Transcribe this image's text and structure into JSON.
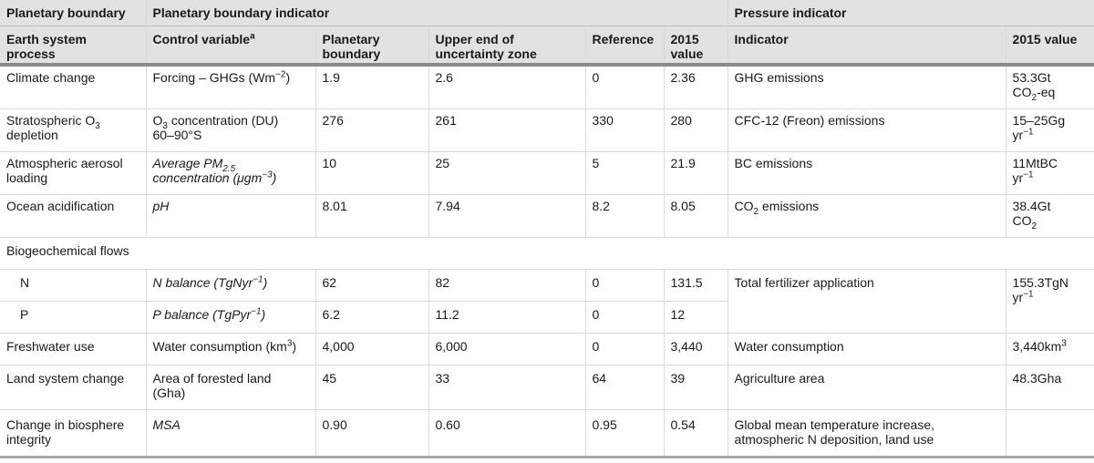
{
  "headers": {
    "group_pb": "Planetary boundary",
    "group_pbi": "Planetary boundary indicator",
    "group_pi": "Pressure indicator",
    "col_process": "Earth system process",
    "col_control_prefix": "Control variable",
    "col_control_sup": "a",
    "col_boundary": "Planetary boundary",
    "col_upper": "Upper end of uncertainty zone",
    "col_reference": "Reference",
    "col_2015a": "2015 value",
    "col_indicator": "Indicator",
    "col_2015b": "2015 value"
  },
  "rows": {
    "climate": {
      "process": "Climate change",
      "cv_a": "Forcing – GHGs (Wm",
      "cv_sup": "−2",
      "cv_b": ")",
      "boundary": "1.9",
      "upper": "2.6",
      "reference": "0",
      "value2015": "2.36",
      "indicator": "GHG emissions",
      "pvalue_a": "53.3Gt",
      "pvalue_b": "CO",
      "pvalue_sub": "2",
      "pvalue_c": "-eq"
    },
    "ozone": {
      "process_a": "Stratospheric O",
      "process_sub": "3",
      "process_b": "depletion",
      "cv_a": "O",
      "cv_sub": "3",
      "cv_b": " concentration (DU)",
      "cv_c": "60–90°S",
      "boundary": "276",
      "upper": "261",
      "reference": "330",
      "value2015": "280",
      "indicator": "CFC-12 (Freon) emissions",
      "pvalue_a": "15–25Gg",
      "pvalue_b": "yr",
      "pvalue_sup": "−1"
    },
    "aerosol": {
      "process_a": "Atmospheric aerosol",
      "process_b": "loading",
      "cv_a": "Average PM",
      "cv_sub": "2.5",
      "cv_b": "concentration (μgm",
      "cv_sup": "−3",
      "cv_c": ")",
      "boundary": "10",
      "upper": "25",
      "reference": "5",
      "value2015": "21.9",
      "indicator": "BC emissions",
      "pvalue_a": "11MtBC",
      "pvalue_b": "yr",
      "pvalue_sup": "−1"
    },
    "ocean": {
      "process": "Ocean acidification",
      "cv": "pH",
      "boundary": "8.01",
      "upper": "7.94",
      "reference": "8.2",
      "value2015": "8.05",
      "indicator_a": "CO",
      "indicator_sub": "2",
      "indicator_b": " emissions",
      "pvalue_a": "38.4Gt",
      "pvalue_b": "CO",
      "pvalue_sub": "2"
    },
    "biogeo": {
      "process": "Biogeochemical flows"
    },
    "nitrogen": {
      "process": "N",
      "cv_a": "N balance (TgNyr",
      "cv_sup": "−1",
      "cv_b": ")",
      "boundary": "62",
      "upper": "82",
      "reference": "0",
      "value2015": "131.5",
      "indicator": "Total fertilizer application",
      "pvalue_a": "155.3TgN",
      "pvalue_b": "yr",
      "pvalue_sup": "−1"
    },
    "phosphorus": {
      "process": "P",
      "cv_a": "P balance (TgPyr",
      "cv_sup": "−1",
      "cv_b": ")",
      "boundary": "6.2",
      "upper": "11.2",
      "reference": "0",
      "value2015": "12"
    },
    "freshwater": {
      "process": "Freshwater use",
      "cv_a": "Water consumption (km",
      "cv_sup": "3",
      "cv_b": ")",
      "boundary": "4,000",
      "upper": "6,000",
      "reference": "0",
      "value2015": "3,440",
      "indicator": "Water consumption",
      "pvalue_a": "3,440km",
      "pvalue_sup": "3"
    },
    "land": {
      "process": "Land system change",
      "cv_a": "Area of forested land",
      "cv_b": "(Gha)",
      "boundary": "45",
      "upper": "33",
      "reference": "64",
      "value2015": "39",
      "indicator": "Agriculture area",
      "pvalue": "48.3Gha"
    },
    "biosphere": {
      "process_a": "Change in biosphere",
      "process_b": "integrity",
      "cv": "MSA",
      "boundary": "0.90",
      "upper": "0.60",
      "reference": "0.95",
      "value2015": "0.54",
      "indicator_a": "Global mean temperature increase,",
      "indicator_b": "atmospheric N deposition, land use",
      "pvalue": ""
    }
  }
}
